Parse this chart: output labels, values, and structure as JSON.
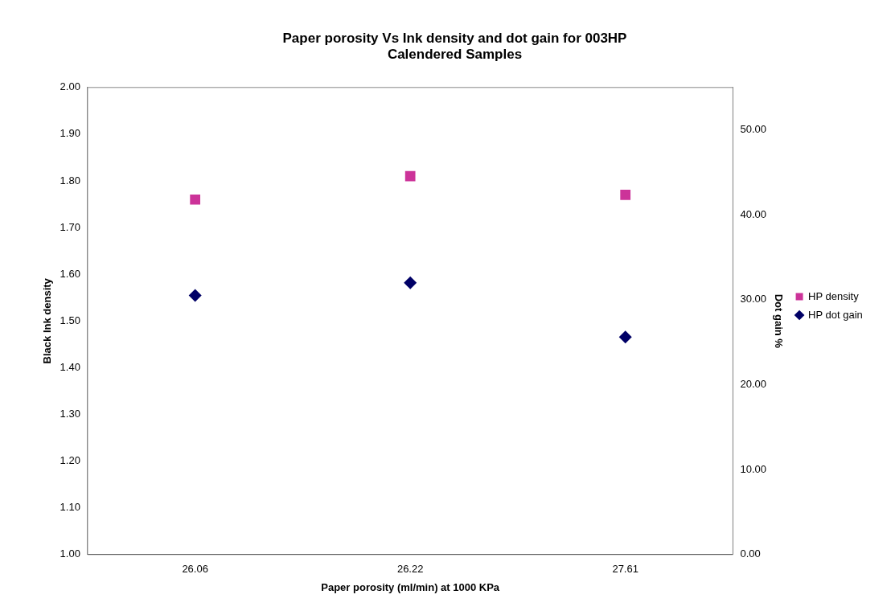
{
  "chart_data": {
    "type": "scatter",
    "title": "Paper porosity Vs Ink density and dot gain for 003HP Calendered Samples",
    "xlabel": "Paper porosity (ml/min) at 1000 KPa",
    "ylabel": "Black Ink density",
    "y2label": "Dot gain %",
    "categories": [
      "26.06",
      "26.22",
      "27.61"
    ],
    "series": [
      {
        "name": "HP density",
        "color": "#cc3399",
        "marker": "square",
        "values": [
          1.76,
          1.81,
          1.77
        ]
      },
      {
        "name": "HP dot gain",
        "color": "#000066",
        "marker": "diamond",
        "axis": "y2",
        "values": [
          30.5,
          32.0,
          25.6
        ]
      }
    ],
    "ylim": [
      1,
      2
    ],
    "yticks": [
      {
        "value": 1,
        "label": "1.00"
      },
      {
        "value": 1.1,
        "label": "1.10"
      },
      {
        "value": 1.2,
        "label": "1.20"
      },
      {
        "value": 1.3,
        "label": "1.30"
      },
      {
        "value": 1.4,
        "label": "1.40"
      },
      {
        "value": 1.5,
        "label": "1.50"
      },
      {
        "value": 1.6,
        "label": "1.60"
      },
      {
        "value": 1.7,
        "label": "1.70"
      },
      {
        "value": 1.8,
        "label": "1.80"
      },
      {
        "value": 1.9,
        "label": "1.90"
      },
      {
        "value": 2,
        "label": "2.00"
      }
    ],
    "y2lim": [
      0,
      55
    ],
    "y2ticks": [
      {
        "value": 0,
        "label": "0.00"
      },
      {
        "value": 10,
        "label": "10.00"
      },
      {
        "value": 20,
        "label": "20.00"
      },
      {
        "value": 30,
        "label": "30.00"
      },
      {
        "value": 40,
        "label": "40.00"
      },
      {
        "value": 50,
        "label": "50.00"
      }
    ],
    "grid": false,
    "legend": "right"
  }
}
